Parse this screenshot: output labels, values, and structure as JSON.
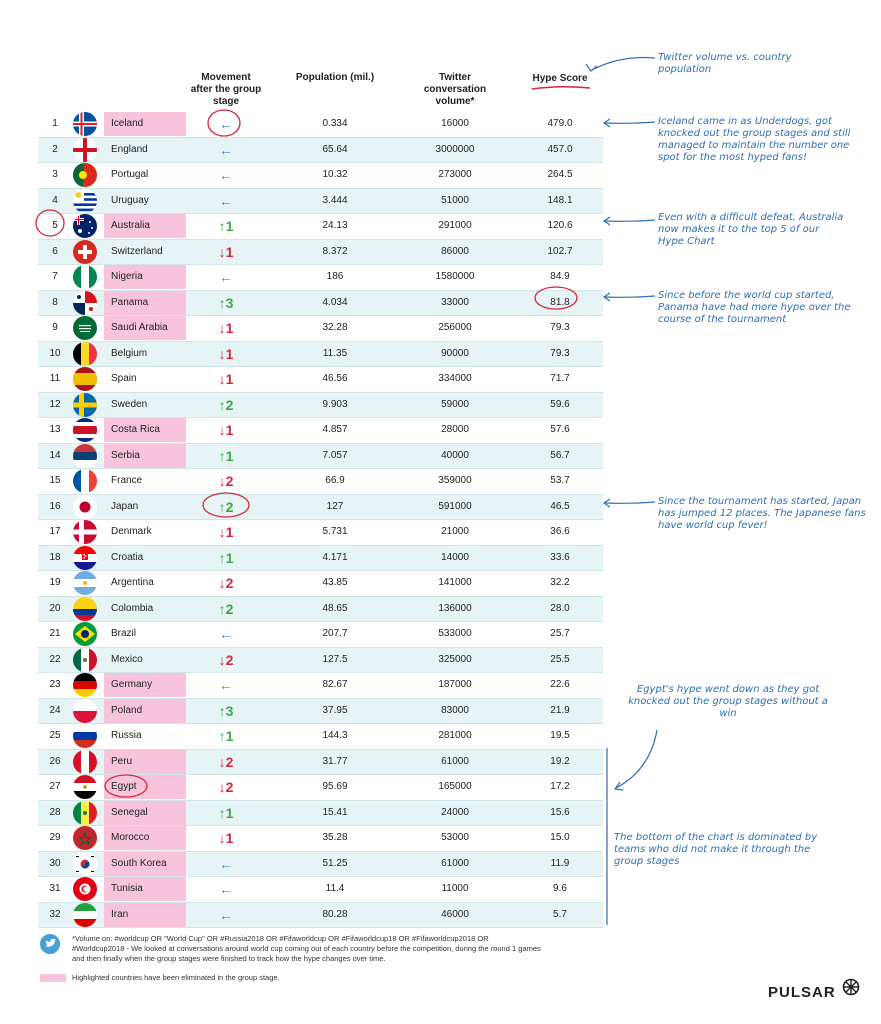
{
  "chart_data": {
    "type": "table",
    "columns": [
      "Movement after the group stage",
      "Population (mil.)",
      "Twitter conversation volume*",
      "Hype Score"
    ],
    "rows": [
      {
        "rank": "1",
        "country": "Iceland",
        "eliminated": true,
        "move": "←",
        "pop": "0.334",
        "twitter": "16000",
        "hype": "479.0"
      },
      {
        "rank": "2",
        "country": "England",
        "eliminated": false,
        "move": "←",
        "pop": "65.64",
        "twitter": "3000000",
        "hype": "457.0"
      },
      {
        "rank": "3",
        "country": "Portugal",
        "eliminated": false,
        "move": "←",
        "pop": "10.32",
        "twitter": "273000",
        "hype": "264.5"
      },
      {
        "rank": "4",
        "country": "Uruguay",
        "eliminated": false,
        "move": "←",
        "pop": "3.444",
        "twitter": "51000",
        "hype": "148.1"
      },
      {
        "rank": "5",
        "country": "Australia",
        "eliminated": true,
        "move": "↑1",
        "pop": "24.13",
        "twitter": "291000",
        "hype": "120.6"
      },
      {
        "rank": "6",
        "country": "Switzerland",
        "eliminated": false,
        "move": "↓1",
        "pop": "8.372",
        "twitter": "86000",
        "hype": "102.7"
      },
      {
        "rank": "7",
        "country": "Nigeria",
        "eliminated": true,
        "move": "←",
        "pop": "186",
        "twitter": "1580000",
        "hype": "84.9"
      },
      {
        "rank": "8",
        "country": "Panama",
        "eliminated": true,
        "move": "↑3",
        "pop": "4.034",
        "twitter": "33000",
        "hype": "81.8"
      },
      {
        "rank": "9",
        "country": "Saudi Arabia",
        "eliminated": true,
        "move": "↓1",
        "pop": "32.28",
        "twitter": "256000",
        "hype": "79.3"
      },
      {
        "rank": "10",
        "country": "Belgium",
        "eliminated": false,
        "move": "↓1",
        "pop": "11.35",
        "twitter": "90000",
        "hype": "79.3"
      },
      {
        "rank": "11",
        "country": "Spain",
        "eliminated": false,
        "move": "↓1",
        "pop": "46.56",
        "twitter": "334000",
        "hype": "71.7"
      },
      {
        "rank": "12",
        "country": "Sweden",
        "eliminated": false,
        "move": "↑2",
        "pop": "9.903",
        "twitter": "59000",
        "hype": "59.6"
      },
      {
        "rank": "13",
        "country": "Costa Rica",
        "eliminated": true,
        "move": "↓1",
        "pop": "4.857",
        "twitter": "28000",
        "hype": "57.6"
      },
      {
        "rank": "14",
        "country": "Serbia",
        "eliminated": true,
        "move": "↑1",
        "pop": "7.057",
        "twitter": "40000",
        "hype": "56.7"
      },
      {
        "rank": "15",
        "country": "France",
        "eliminated": false,
        "move": "↓2",
        "pop": "66.9",
        "twitter": "359000",
        "hype": "53.7"
      },
      {
        "rank": "16",
        "country": "Japan",
        "eliminated": false,
        "move": "↑2",
        "pop": "127",
        "twitter": "591000",
        "hype": "46.5"
      },
      {
        "rank": "17",
        "country": "Denmark",
        "eliminated": false,
        "move": "↓1",
        "pop": "5.731",
        "twitter": "21000",
        "hype": "36.6"
      },
      {
        "rank": "18",
        "country": "Croatia",
        "eliminated": false,
        "move": "↑1",
        "pop": "4.171",
        "twitter": "14000",
        "hype": "33.6"
      },
      {
        "rank": "19",
        "country": "Argentina",
        "eliminated": false,
        "move": "↓2",
        "pop": "43.85",
        "twitter": "141000",
        "hype": "32.2"
      },
      {
        "rank": "20",
        "country": "Colombia",
        "eliminated": false,
        "move": "↑2",
        "pop": "48.65",
        "twitter": "136000",
        "hype": "28.0"
      },
      {
        "rank": "21",
        "country": "Brazil",
        "eliminated": false,
        "move": "←",
        "pop": "207.7",
        "twitter": "533000",
        "hype": "25.7"
      },
      {
        "rank": "22",
        "country": "Mexico",
        "eliminated": false,
        "move": "↓2",
        "pop": "127.5",
        "twitter": "325000",
        "hype": "25.5"
      },
      {
        "rank": "23",
        "country": "Germany",
        "eliminated": true,
        "move": "←",
        "pop": "82.67",
        "twitter": "187000",
        "hype": "22.6"
      },
      {
        "rank": "24",
        "country": "Poland",
        "eliminated": true,
        "move": "↑3",
        "pop": "37.95",
        "twitter": "83000",
        "hype": "21.9"
      },
      {
        "rank": "25",
        "country": "Russia",
        "eliminated": false,
        "move": "↑1",
        "pop": "144.3",
        "twitter": "281000",
        "hype": "19.5"
      },
      {
        "rank": "26",
        "country": "Peru",
        "eliminated": true,
        "move": "↓2",
        "pop": "31.77",
        "twitter": "61000",
        "hype": "19.2"
      },
      {
        "rank": "27",
        "country": "Egypt",
        "eliminated": true,
        "move": "↓2",
        "pop": "95.69",
        "twitter": "165000",
        "hype": "17.2"
      },
      {
        "rank": "28",
        "country": "Senegal",
        "eliminated": true,
        "move": "↑1",
        "pop": "15.41",
        "twitter": "24000",
        "hype": "15.6"
      },
      {
        "rank": "29",
        "country": "Morocco",
        "eliminated": true,
        "move": "↓1",
        "pop": "35.28",
        "twitter": "53000",
        "hype": "15.0"
      },
      {
        "rank": "30",
        "country": "South Korea",
        "eliminated": true,
        "move": "←",
        "pop": "51.25",
        "twitter": "61000",
        "hype": "11.9"
      },
      {
        "rank": "31",
        "country": "Tunisia",
        "eliminated": true,
        "move": "←",
        "pop": "11.4",
        "twitter": "11000",
        "hype": "9.6"
      },
      {
        "rank": "32",
        "country": "Iran",
        "eliminated": true,
        "move": "←",
        "pop": "80.28",
        "twitter": "46000",
        "hype": "5.7"
      }
    ]
  },
  "headers": {
    "movement": "Movement after the group stage",
    "population": "Population (mil.)",
    "twitter": "Twitter conversation volume*",
    "hype": "Hype Score"
  },
  "annotations": {
    "twitter_vs_pop": "Twitter volume vs. country population",
    "iceland": "Iceland came in as Underdogs, got knocked out the group stages and still managed to maintain the number one spot for the most hyped fans!",
    "australia": "Even with a difficult defeat, Australia now makes it to the top 5 of our Hype Chart",
    "panama": "Since before the world cup started, Panama have had more hype over the course of the tournament",
    "japan": "Since the tournament has started, Japan has jumped 12 places. The Japanese fans have world cup fever!",
    "egypt": "Egypt's hype went down as they got knocked out the group stages without a win",
    "bottom": "The bottom of the chart is dominated by teams who did not make it through the group stages"
  },
  "footer": {
    "note": "*Volume on: #worldcup OR \"World Cup\" OR #Russia2018 OR #Fifaworldcup OR #Fifaworldcup18 OR #Fifaworldcup2018 OR #Worldcup2018 - We looked at conversations around world cup coming out of each country before the competition, during the round 1 games and then finally when the group stages were finished to track how the hype changes over time.",
    "legend": "Highlighted countries have been eliminated in the group stage.",
    "brand": "PULSAR"
  },
  "colors": {
    "up": "#3aa845",
    "down": "#d7263d",
    "same": "#4a86b8",
    "eliminated": "#f8c4dc",
    "band": "#e7f4f5",
    "annotation": "#2f6fb5",
    "circle": "#d7263d"
  },
  "flags": [
    "iceland",
    "england",
    "portugal",
    "uruguay",
    "australia",
    "switzerland",
    "nigeria",
    "panama",
    "saudi-arabia",
    "belgium",
    "spain",
    "sweden",
    "costa-rica",
    "serbia",
    "france",
    "japan",
    "denmark",
    "croatia",
    "argentina",
    "colombia",
    "brazil",
    "mexico",
    "germany",
    "poland",
    "russia",
    "peru",
    "egypt",
    "senegal",
    "morocco",
    "south-korea",
    "tunisia",
    "iran"
  ]
}
